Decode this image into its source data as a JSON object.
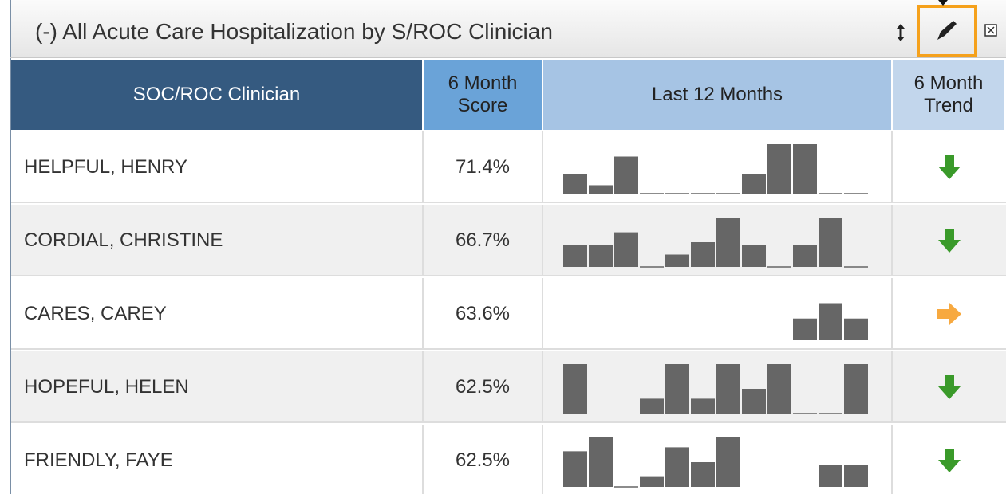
{
  "panel": {
    "title": "(-) All Acute Care Hospitalization by S/ROC Clinician"
  },
  "table": {
    "columns": [
      "SOC/ROC Clinician",
      "6 Month Score",
      "Last 12 Months",
      "6 Month Trend"
    ],
    "rows": [
      [
        "HELPFUL, HENRY",
        "71.4%"
      ],
      [
        "CORDIAL, CHRISTINE",
        "66.7%"
      ],
      [
        "CARES, CAREY",
        "63.6%"
      ],
      [
        "HOPEFUL, HELEN",
        "62.5%"
      ],
      [
        "FRIENDLY, FAYE",
        "62.5%"
      ]
    ]
  },
  "sparklines": {
    "type": "bar",
    "ylim": [
      0,
      100
    ],
    "color": "#666666",
    "series": [
      [
        40,
        17,
        75,
        0,
        0,
        0,
        0,
        40,
        100,
        100,
        0,
        0
      ],
      [
        44,
        44,
        70,
        0,
        25,
        50,
        100,
        44,
        0,
        44,
        100,
        0
      ],
      [
        null,
        null,
        null,
        null,
        null,
        null,
        null,
        null,
        null,
        44,
        75,
        44
      ],
      [
        100,
        null,
        null,
        30,
        100,
        30,
        100,
        50,
        100,
        0,
        0,
        100
      ],
      [
        72,
        100,
        0,
        20,
        80,
        50,
        100,
        null,
        null,
        null,
        44,
        44
      ]
    ]
  }
}
